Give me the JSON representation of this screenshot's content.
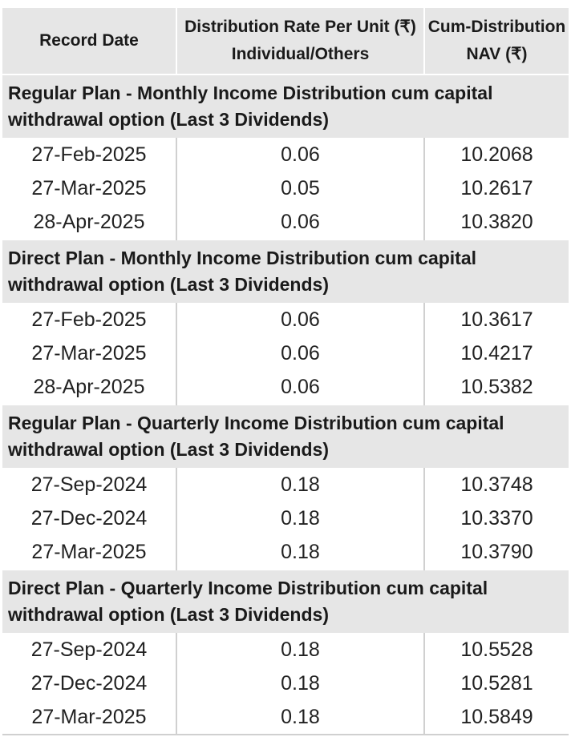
{
  "header": {
    "col1": "Record Date",
    "col2_line1": "Distribution Rate Per Unit  (₹)",
    "col2_line2": "Individual/Others",
    "col3_line1": "Cum-Distribution",
    "col3_line2": "NAV (₹)"
  },
  "sections": [
    {
      "title_line1": "Regular Plan - Monthly Income Distribution cum capital",
      "title_line2": "withdrawal option (Last 3 Dividends)",
      "rows": [
        {
          "date": "27-Feb-2025",
          "rate": "0.06",
          "nav": "10.2068"
        },
        {
          "date": "27-Mar-2025",
          "rate": "0.05",
          "nav": "10.2617"
        },
        {
          "date": "28-Apr-2025",
          "rate": "0.06",
          "nav": "10.3820"
        }
      ]
    },
    {
      "title_line1": "Direct Plan - Monthly Income Distribution cum capital",
      "title_line2": "withdrawal option (Last 3 Dividends)",
      "rows": [
        {
          "date": "27-Feb-2025",
          "rate": "0.06",
          "nav": "10.3617"
        },
        {
          "date": "27-Mar-2025",
          "rate": "0.06",
          "nav": "10.4217"
        },
        {
          "date": "28-Apr-2025",
          "rate": "0.06",
          "nav": "10.5382"
        }
      ]
    },
    {
      "title_line1": "Regular Plan - Quarterly Income Distribution cum capital",
      "title_line2": "withdrawal option (Last 3 Dividends)",
      "rows": [
        {
          "date": "27-Sep-2024",
          "rate": "0.18",
          "nav": "10.3748"
        },
        {
          "date": "27-Dec-2024",
          "rate": "0.18",
          "nav": "10.3370"
        },
        {
          "date": "27-Mar-2025",
          "rate": "0.18",
          "nav": "10.3790"
        }
      ]
    },
    {
      "title_line1": "Direct Plan - Quarterly Income Distribution cum capital",
      "title_line2": "withdrawal option (Last 3 Dividends)",
      "rows": [
        {
          "date": "27-Sep-2024",
          "rate": "0.18",
          "nav": "10.5528"
        },
        {
          "date": "27-Dec-2024",
          "rate": "0.18",
          "nav": "10.5281"
        },
        {
          "date": "27-Mar-2025",
          "rate": "0.18",
          "nav": "10.5849"
        }
      ]
    }
  ]
}
